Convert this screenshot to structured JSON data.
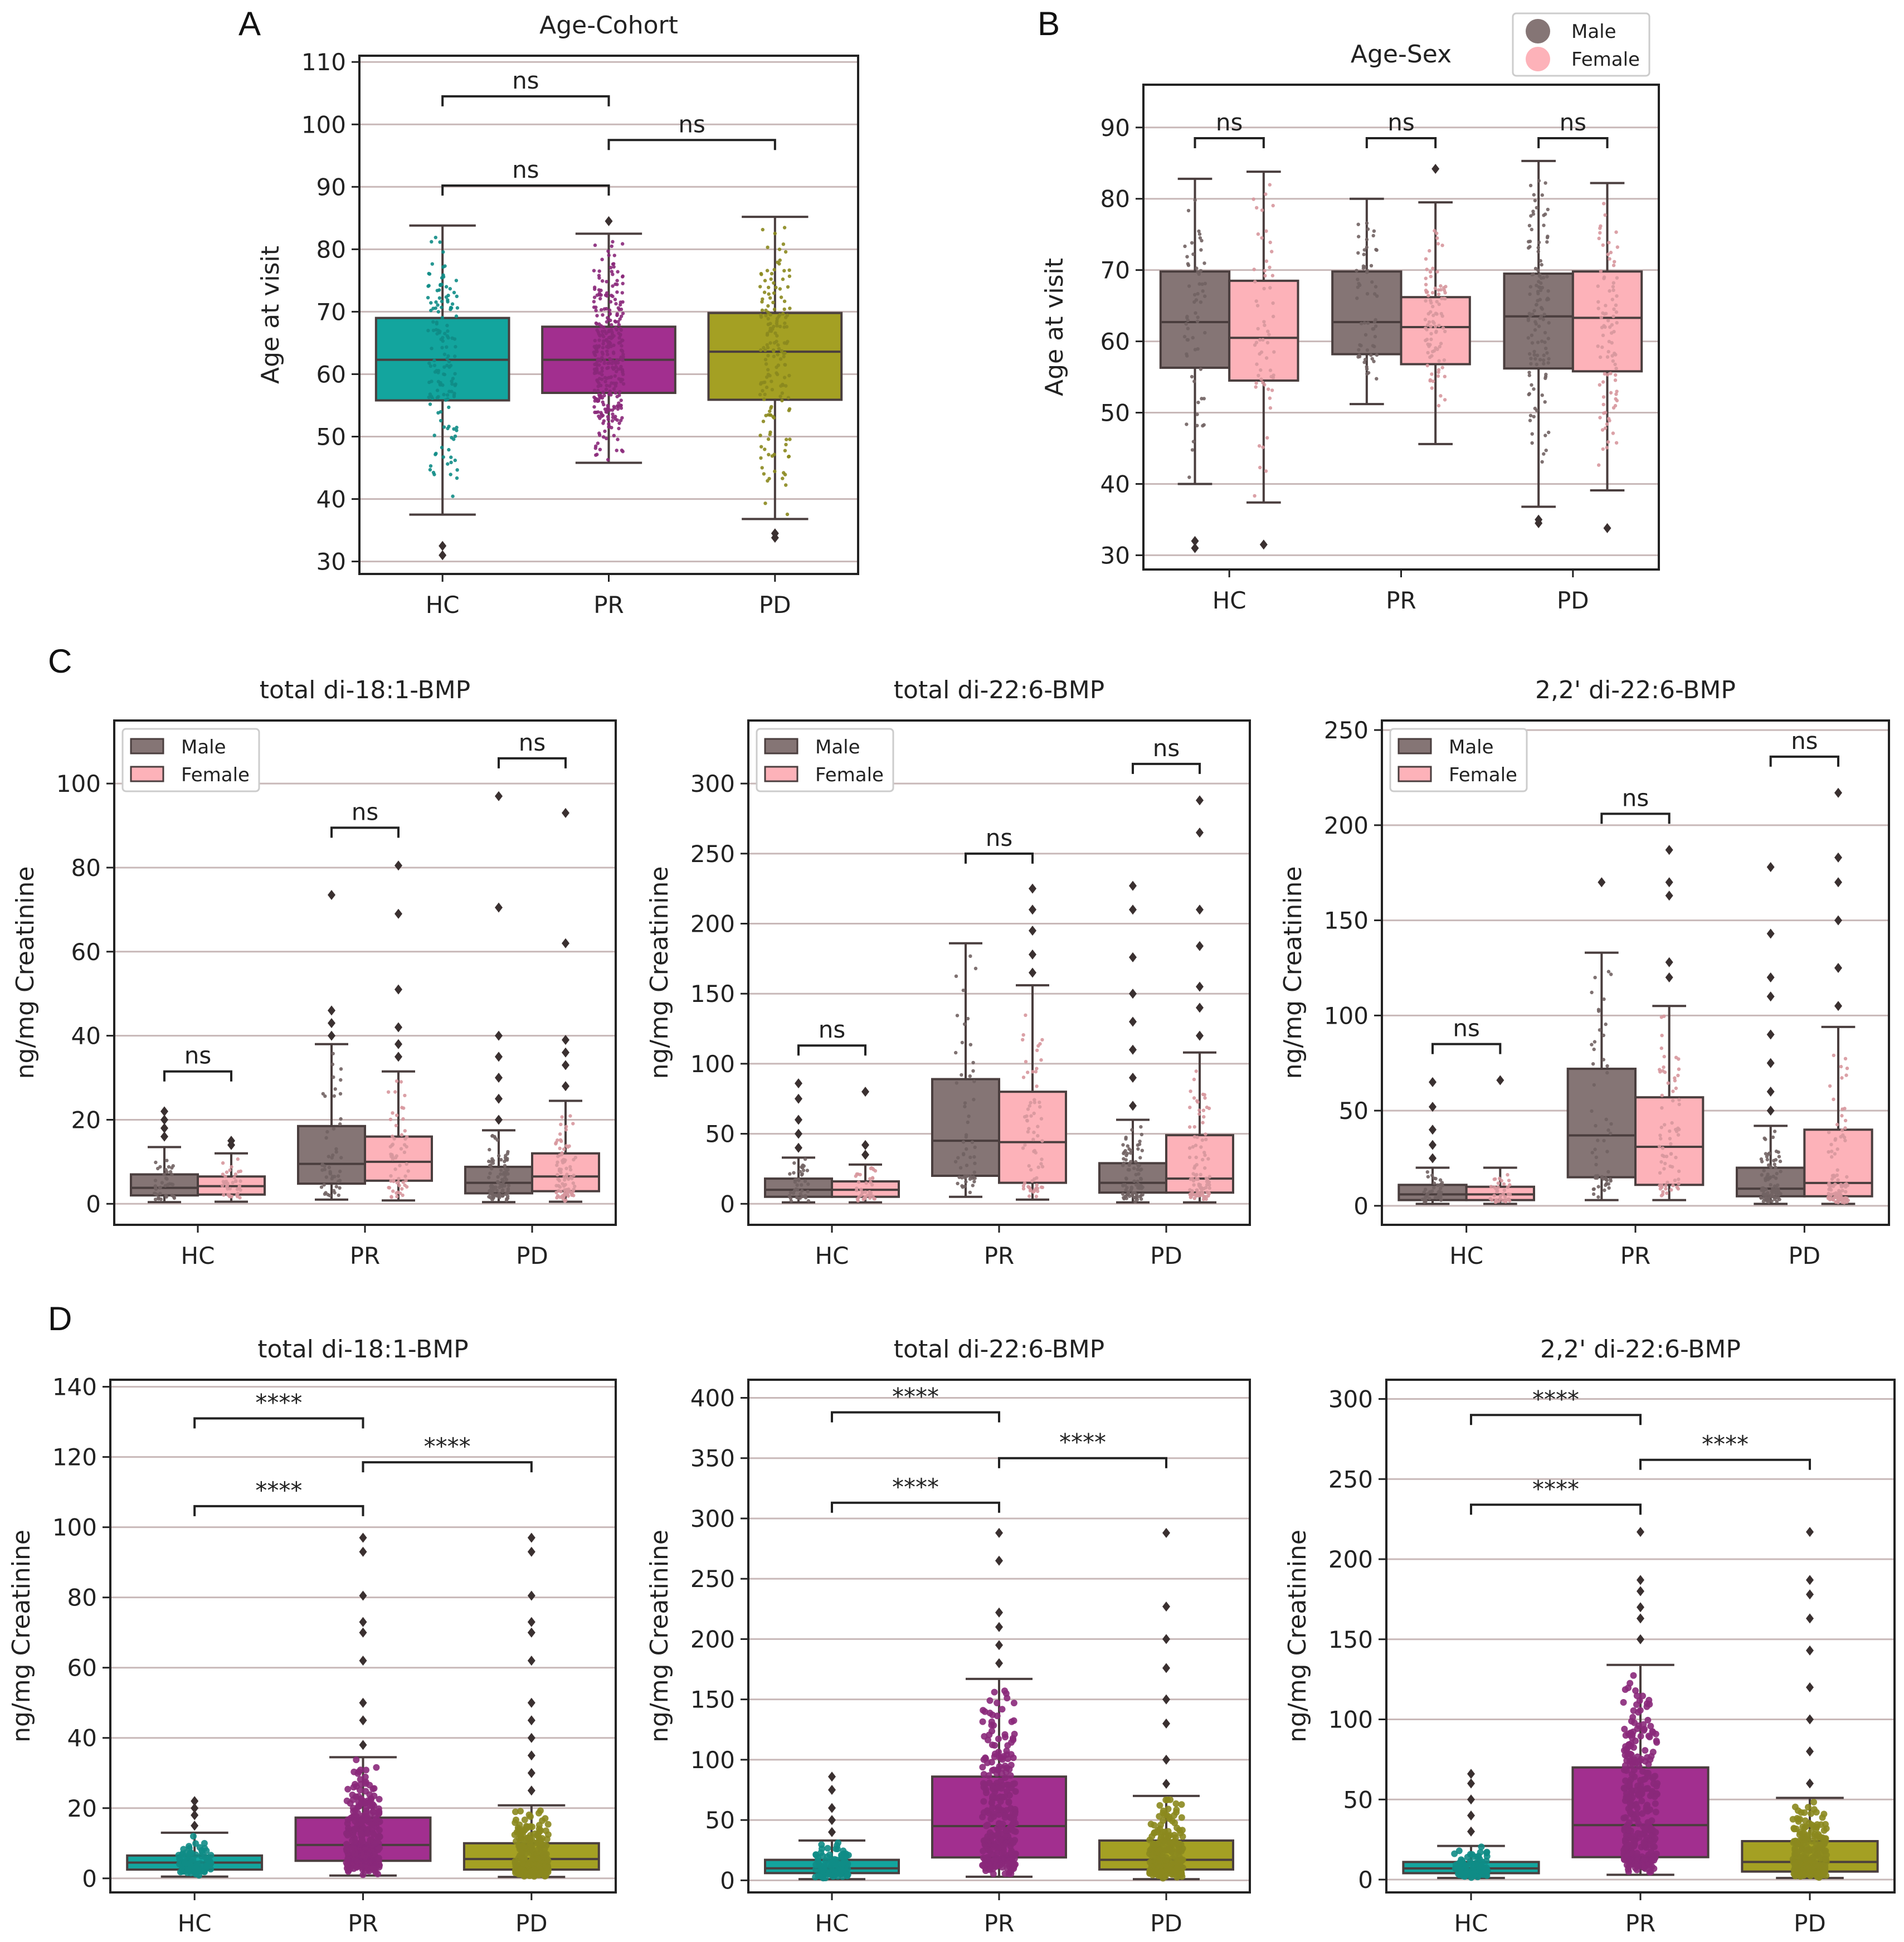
{
  "panel_labels": [
    "A",
    "B",
    "C",
    "D"
  ],
  "colors": {
    "HC": "#13a59e",
    "PR": "#a22f8f",
    "PD": "#a4a023",
    "Male": "#857575",
    "Female": "#fdb2b9",
    "grid": "#c8b8b8",
    "box_line": "#4a3e3e"
  },
  "chart_data": [
    {
      "id": "A",
      "type": "box",
      "title": "Age-Cohort",
      "ylabel": "Age at visit",
      "categories": [
        "HC",
        "PR",
        "PD"
      ],
      "ylim": [
        28,
        111
      ],
      "yticks": [
        30,
        40,
        50,
        60,
        70,
        80,
        90,
        100,
        110
      ],
      "boxes": [
        {
          "cat": "HC",
          "color": "HC",
          "whislo": 37.5,
          "q1": 55.8,
          "med": 62.3,
          "q3": 69,
          "whishi": 83.8,
          "fliers": [
            31,
            32.5
          ],
          "n": 150,
          "spread": 0.18
        },
        {
          "cat": "PR",
          "color": "PR",
          "whislo": 45.8,
          "q1": 57,
          "med": 62.3,
          "q3": 67.6,
          "whishi": 82.5,
          "fliers": [
            84.5
          ],
          "n": 330,
          "spread": 0.18
        },
        {
          "cat": "PD",
          "color": "PD",
          "whislo": 36.8,
          "q1": 55.9,
          "med": 63.6,
          "q3": 69.8,
          "whishi": 85.2,
          "fliers": [
            33.8,
            34.5
          ],
          "n": 170,
          "spread": 0.18
        }
      ],
      "brackets": [
        {
          "from": 0,
          "to": 1,
          "y": 104.5,
          "label": "ns"
        },
        {
          "from": 1,
          "to": 2,
          "y": 97.5,
          "label": "ns"
        },
        {
          "from": 0,
          "to": 1,
          "y": 90.2,
          "label": "ns"
        }
      ]
    },
    {
      "id": "B",
      "type": "box",
      "title": "Age-Sex",
      "ylabel": "Age at visit",
      "categories": [
        "HC",
        "PR",
        "PD"
      ],
      "ylim": [
        28,
        96
      ],
      "yticks": [
        30,
        40,
        50,
        60,
        70,
        80,
        90
      ],
      "legend": {
        "placement": "top-right-outside",
        "style": "circle",
        "entries": [
          "Male",
          "Female"
        ]
      },
      "boxes": [
        {
          "cat": "HC",
          "group": "Male",
          "color": "Male",
          "whislo": 40,
          "q1": 56.3,
          "med": 62.7,
          "q3": 69.8,
          "whishi": 82.8,
          "fliers": [
            31,
            32
          ],
          "n": 60,
          "spread": 0.12
        },
        {
          "cat": "HC",
          "group": "Female",
          "color": "Female",
          "whislo": 37.4,
          "q1": 54.5,
          "med": 60.5,
          "q3": 68.5,
          "whishi": 83.8,
          "fliers": [
            31.5
          ],
          "n": 60,
          "spread": 0.12
        },
        {
          "cat": "PR",
          "group": "Male",
          "color": "Male",
          "whislo": 51.2,
          "q1": 58.2,
          "med": 62.7,
          "q3": 69.8,
          "whishi": 80,
          "fliers": [],
          "n": 60,
          "spread": 0.12
        },
        {
          "cat": "PR",
          "group": "Female",
          "color": "Female",
          "whislo": 45.6,
          "q1": 56.8,
          "med": 62,
          "q3": 66.2,
          "whishi": 79.5,
          "fliers": [
            84.2
          ],
          "n": 90,
          "spread": 0.12
        },
        {
          "cat": "PD",
          "group": "Male",
          "color": "Male",
          "whislo": 36.8,
          "q1": 56.2,
          "med": 63.5,
          "q3": 69.5,
          "whishi": 85.3,
          "fliers": [
            34.5,
            35
          ],
          "n": 120,
          "spread": 0.12
        },
        {
          "cat": "PD",
          "group": "Female",
          "color": "Female",
          "whislo": 39.1,
          "q1": 55.8,
          "med": 63.3,
          "q3": 69.8,
          "whishi": 82.2,
          "fliers": [
            33.8
          ],
          "n": 90,
          "spread": 0.12
        }
      ],
      "brackets": [
        {
          "from": -0.2,
          "to": 0.2,
          "y": 88.5,
          "label": "ns"
        },
        {
          "from": 0.8,
          "to": 1.2,
          "y": 88.5,
          "label": "ns"
        },
        {
          "from": 1.8,
          "to": 2.2,
          "y": 88.5,
          "label": "ns"
        }
      ]
    },
    {
      "id": "C1",
      "type": "box",
      "title": "total di-18:1-BMP",
      "ylabel": "ng/mg Creatinine",
      "categories": [
        "HC",
        "PR",
        "PD"
      ],
      "ylim": [
        -5,
        115
      ],
      "yticks": [
        0,
        20,
        40,
        60,
        80,
        100
      ],
      "legend": {
        "placement": "top-left",
        "style": "rect",
        "entries": [
          "Male",
          "Female"
        ]
      },
      "boxes": [
        {
          "cat": "HC",
          "group": "Male",
          "color": "Male",
          "whislo": 0.4,
          "q1": 2,
          "med": 3.8,
          "q3": 7,
          "whishi": 13.5,
          "fliers": [
            16,
            18,
            20,
            22
          ],
          "n": 40,
          "spread": 0.12
        },
        {
          "cat": "HC",
          "group": "Female",
          "color": "Female",
          "whislo": 0.5,
          "q1": 2.2,
          "med": 4.2,
          "q3": 6.5,
          "whishi": 12,
          "fliers": [
            14,
            15
          ],
          "n": 40,
          "spread": 0.12
        },
        {
          "cat": "PR",
          "group": "Male",
          "color": "Male",
          "whislo": 1,
          "q1": 4.8,
          "med": 9.5,
          "q3": 18.5,
          "whishi": 38,
          "fliers": [
            40,
            43,
            46,
            73.5
          ],
          "n": 50,
          "spread": 0.12
        },
        {
          "cat": "PR",
          "group": "Female",
          "color": "Female",
          "whislo": 0.8,
          "q1": 5.5,
          "med": 10,
          "q3": 16,
          "whishi": 31.5,
          "fliers": [
            35,
            38,
            42,
            51,
            69,
            80.5
          ],
          "n": 60,
          "spread": 0.12
        },
        {
          "cat": "PD",
          "group": "Male",
          "color": "Male",
          "whislo": 0.4,
          "q1": 2.5,
          "med": 5,
          "q3": 8.8,
          "whishi": 17.5,
          "fliers": [
            20,
            25,
            30,
            35,
            40,
            70.5,
            97
          ],
          "n": 90,
          "spread": 0.12
        },
        {
          "cat": "PD",
          "group": "Female",
          "color": "Female",
          "whislo": 0.5,
          "q1": 3,
          "med": 6.5,
          "q3": 12,
          "whishi": 24.5,
          "fliers": [
            28,
            33,
            36,
            39,
            62,
            93
          ],
          "n": 90,
          "spread": 0.12
        }
      ],
      "brackets": [
        {
          "from": -0.2,
          "to": 0.2,
          "y": 31.5,
          "label": "ns"
        },
        {
          "from": 0.8,
          "to": 1.2,
          "y": 89.5,
          "label": "ns"
        },
        {
          "from": 1.8,
          "to": 2.2,
          "y": 106,
          "label": "ns"
        }
      ]
    },
    {
      "id": "C2",
      "type": "box",
      "title": "total di-22:6-BMP",
      "ylabel": "ng/mg Creatinine",
      "categories": [
        "HC",
        "PR",
        "PD"
      ],
      "ylim": [
        -15,
        345
      ],
      "yticks": [
        0,
        50,
        100,
        150,
        200,
        250,
        300
      ],
      "legend": {
        "placement": "top-left",
        "style": "rect",
        "entries": [
          "Male",
          "Female"
        ]
      },
      "boxes": [
        {
          "cat": "HC",
          "group": "Male",
          "color": "Male",
          "whislo": 1,
          "q1": 5,
          "med": 10,
          "q3": 18,
          "whishi": 33,
          "fliers": [
            40,
            50,
            60,
            75,
            86
          ],
          "n": 40,
          "spread": 0.12
        },
        {
          "cat": "HC",
          "group": "Female",
          "color": "Female",
          "whislo": 1,
          "q1": 5,
          "med": 10,
          "q3": 16,
          "whishi": 28,
          "fliers": [
            35,
            42,
            80
          ],
          "n": 40,
          "spread": 0.12
        },
        {
          "cat": "PR",
          "group": "Male",
          "color": "Male",
          "whislo": 5,
          "q1": 20,
          "med": 45,
          "q3": 89,
          "whishi": 186,
          "fliers": [],
          "n": 55,
          "spread": 0.12
        },
        {
          "cat": "PR",
          "group": "Female",
          "color": "Female",
          "whislo": 3,
          "q1": 15,
          "med": 44,
          "q3": 80,
          "whishi": 156,
          "fliers": [
            165,
            178,
            195,
            210,
            225
          ],
          "n": 70,
          "spread": 0.12
        },
        {
          "cat": "PD",
          "group": "Male",
          "color": "Male",
          "whislo": 1,
          "q1": 8,
          "med": 15,
          "q3": 29,
          "whishi": 60,
          "fliers": [
            70,
            90,
            110,
            130,
            150,
            176,
            210,
            227
          ],
          "n": 90,
          "spread": 0.12
        },
        {
          "cat": "PD",
          "group": "Female",
          "color": "Female",
          "whislo": 1,
          "q1": 8,
          "med": 18,
          "q3": 49,
          "whishi": 108,
          "fliers": [
            120,
            140,
            155,
            184,
            210,
            265,
            288
          ],
          "n": 100,
          "spread": 0.12
        }
      ],
      "brackets": [
        {
          "from": -0.2,
          "to": 0.2,
          "y": 113,
          "label": "ns"
        },
        {
          "from": 0.8,
          "to": 1.2,
          "y": 250,
          "label": "ns"
        },
        {
          "from": 1.8,
          "to": 2.2,
          "y": 314,
          "label": "ns"
        }
      ]
    },
    {
      "id": "C3",
      "type": "box",
      "title": "2,2' di-22:6-BMP",
      "ylabel": "ng/mg Creatinine",
      "categories": [
        "HC",
        "PR",
        "PD"
      ],
      "ylim": [
        -10,
        255
      ],
      "yticks": [
        0,
        50,
        100,
        150,
        200,
        250
      ],
      "legend": {
        "placement": "top-left",
        "style": "rect",
        "entries": [
          "Male",
          "Female"
        ]
      },
      "boxes": [
        {
          "cat": "HC",
          "group": "Male",
          "color": "Male",
          "whislo": 1,
          "q1": 3,
          "med": 6,
          "q3": 11,
          "whishi": 20,
          "fliers": [
            25,
            32,
            40,
            52,
            65
          ],
          "n": 40,
          "spread": 0.12
        },
        {
          "cat": "HC",
          "group": "Female",
          "color": "Female",
          "whislo": 1,
          "q1": 3,
          "med": 6,
          "q3": 10,
          "whishi": 20,
          "fliers": [
            66
          ],
          "n": 40,
          "spread": 0.12
        },
        {
          "cat": "PR",
          "group": "Male",
          "color": "Male",
          "whislo": 3,
          "q1": 15,
          "med": 37,
          "q3": 72,
          "whishi": 133,
          "fliers": [
            170
          ],
          "n": 55,
          "spread": 0.12
        },
        {
          "cat": "PR",
          "group": "Female",
          "color": "Female",
          "whislo": 3,
          "q1": 11,
          "med": 31,
          "q3": 57,
          "whishi": 105,
          "fliers": [
            120,
            128,
            163,
            170,
            187
          ],
          "n": 70,
          "spread": 0.12
        },
        {
          "cat": "PD",
          "group": "Male",
          "color": "Male",
          "whislo": 1,
          "q1": 5,
          "med": 9,
          "q3": 20,
          "whishi": 42,
          "fliers": [
            50,
            60,
            75,
            90,
            110,
            120,
            143,
            178
          ],
          "n": 90,
          "spread": 0.12
        },
        {
          "cat": "PD",
          "group": "Female",
          "color": "Female",
          "whislo": 1,
          "q1": 5,
          "med": 12,
          "q3": 40,
          "whishi": 94,
          "fliers": [
            105,
            125,
            150,
            170,
            183,
            217
          ],
          "n": 100,
          "spread": 0.12
        }
      ],
      "brackets": [
        {
          "from": -0.2,
          "to": 0.2,
          "y": 85,
          "label": "ns"
        },
        {
          "from": 0.8,
          "to": 1.2,
          "y": 206,
          "label": "ns"
        },
        {
          "from": 1.8,
          "to": 2.2,
          "y": 236,
          "label": "ns"
        }
      ]
    },
    {
      "id": "D1",
      "type": "box",
      "title": "total di-18:1-BMP",
      "ylabel": "ng/mg Creatinine",
      "categories": [
        "HC",
        "PR",
        "PD"
      ],
      "ylim": [
        -4,
        142
      ],
      "yticks": [
        0,
        20,
        40,
        60,
        80,
        100,
        120,
        140
      ],
      "boxes": [
        {
          "cat": "HC",
          "color": "HC",
          "whislo": 0.5,
          "q1": 2.5,
          "med": 4.5,
          "q3": 6.5,
          "whishi": 13,
          "fliers": [
            15,
            18,
            20,
            22
          ],
          "n": 90,
          "spread": 0.2
        },
        {
          "cat": "PR",
          "color": "PR",
          "whislo": 0.8,
          "q1": 5,
          "med": 9.5,
          "q3": 17.3,
          "whishi": 34.5,
          "fliers": [
            38,
            45,
            50,
            62,
            70,
            73,
            80.5,
            93,
            97
          ],
          "n": 300,
          "spread": 0.2
        },
        {
          "cat": "PD",
          "color": "PD",
          "whislo": 0.4,
          "q1": 2.5,
          "med": 5.5,
          "q3": 10,
          "whishi": 20.8,
          "fliers": [
            25,
            30,
            35,
            40,
            45,
            50,
            62,
            70,
            73,
            80.5,
            93,
            97
          ],
          "n": 250,
          "spread": 0.2
        }
      ],
      "brackets": [
        {
          "from": 0,
          "to": 1,
          "y": 131,
          "label": "****"
        },
        {
          "from": 1,
          "to": 2,
          "y": 118.5,
          "label": "****"
        },
        {
          "from": 0,
          "to": 1,
          "y": 106,
          "label": "****"
        }
      ]
    },
    {
      "id": "D2",
      "type": "box",
      "title": "total di-22:6-BMP",
      "ylabel": "ng/mg Creatinine",
      "categories": [
        "HC",
        "PR",
        "PD"
      ],
      "ylim": [
        -10,
        415
      ],
      "yticks": [
        0,
        50,
        100,
        150,
        200,
        250,
        300,
        350,
        400
      ],
      "boxes": [
        {
          "cat": "HC",
          "color": "HC",
          "whislo": 1,
          "q1": 6,
          "med": 10,
          "q3": 17,
          "whishi": 33,
          "fliers": [
            40,
            50,
            60,
            75,
            86
          ],
          "n": 90,
          "spread": 0.2
        },
        {
          "cat": "PR",
          "color": "PR",
          "whislo": 3,
          "q1": 19,
          "med": 45,
          "q3": 86,
          "whishi": 167,
          "fliers": [
            180,
            195,
            210,
            222,
            265,
            288
          ],
          "n": 300,
          "spread": 0.2
        },
        {
          "cat": "PD",
          "color": "PD",
          "whislo": 1,
          "q1": 9,
          "med": 17,
          "q3": 33,
          "whishi": 70,
          "fliers": [
            80,
            100,
            130,
            150,
            176,
            200,
            227,
            288
          ],
          "n": 250,
          "spread": 0.2
        }
      ],
      "brackets": [
        {
          "from": 0,
          "to": 1,
          "y": 388,
          "label": "****"
        },
        {
          "from": 1,
          "to": 2,
          "y": 350,
          "label": "****"
        },
        {
          "from": 0,
          "to": 1,
          "y": 313,
          "label": "****"
        }
      ]
    },
    {
      "id": "D3",
      "type": "box",
      "title": "2,2' di-22:6-BMP",
      "ylabel": "ng/mg Creatinine",
      "categories": [
        "HC",
        "PR",
        "PD"
      ],
      "ylim": [
        -8,
        312
      ],
      "yticks": [
        0,
        50,
        100,
        150,
        200,
        250,
        300
      ],
      "boxes": [
        {
          "cat": "HC",
          "color": "HC",
          "whislo": 1,
          "q1": 4,
          "med": 7,
          "q3": 11,
          "whishi": 21,
          "fliers": [
            30,
            40,
            50,
            60,
            66
          ],
          "n": 90,
          "spread": 0.2
        },
        {
          "cat": "PR",
          "color": "PR",
          "whislo": 3,
          "q1": 14,
          "med": 34,
          "q3": 70,
          "whishi": 134,
          "fliers": [
            150,
            163,
            170,
            180,
            187,
            217
          ],
          "n": 300,
          "spread": 0.2
        },
        {
          "cat": "PD",
          "color": "PD",
          "whislo": 1,
          "q1": 5,
          "med": 11,
          "q3": 24,
          "whishi": 51,
          "fliers": [
            60,
            80,
            100,
            120,
            143,
            163,
            178,
            187,
            217
          ],
          "n": 250,
          "spread": 0.2
        }
      ],
      "brackets": [
        {
          "from": 0,
          "to": 1,
          "y": 290,
          "label": "****"
        },
        {
          "from": 1,
          "to": 2,
          "y": 262,
          "label": "****"
        },
        {
          "from": 0,
          "to": 1,
          "y": 234,
          "label": "****"
        }
      ]
    }
  ]
}
